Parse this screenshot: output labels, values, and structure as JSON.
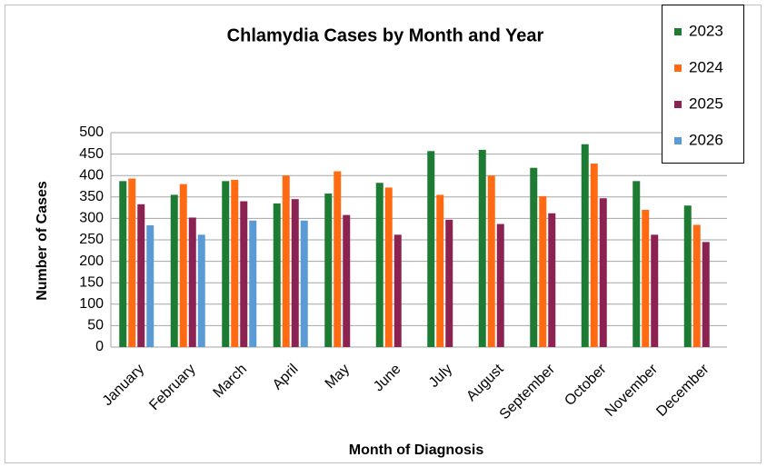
{
  "chart_data": {
    "type": "bar",
    "title": "Chlamydia Cases by Month and Year",
    "x_label": "Month of Diagnosis",
    "y_label": "Number of Cases",
    "categories": [
      "January",
      "February",
      "March",
      "April",
      "May",
      "June",
      "July",
      "August",
      "September",
      "October",
      "November",
      "December"
    ],
    "series": [
      {
        "name": "2023",
        "color": "#1e7b34",
        "values": [
          387,
          355,
          387,
          335,
          358,
          383,
          457,
          460,
          418,
          473,
          387,
          330
        ]
      },
      {
        "name": "2024",
        "color": "#ff6a13",
        "values": [
          393,
          380,
          390,
          400,
          410,
          372,
          355,
          400,
          352,
          428,
          320,
          285
        ]
      },
      {
        "name": "2025",
        "color": "#8b2252",
        "values": [
          333,
          302,
          340,
          345,
          308,
          262,
          297,
          287,
          312,
          347,
          262,
          245
        ]
      },
      {
        "name": "2026",
        "color": "#5b9bd5",
        "values": [
          284,
          262,
          295,
          295,
          null,
          null,
          null,
          null,
          null,
          null,
          null,
          null
        ]
      }
    ],
    "ylim": [
      0,
      500
    ],
    "yticks": [
      0,
      50,
      100,
      150,
      200,
      250,
      300,
      350,
      400,
      450,
      500
    ],
    "grid": true,
    "legend": "top-right"
  }
}
